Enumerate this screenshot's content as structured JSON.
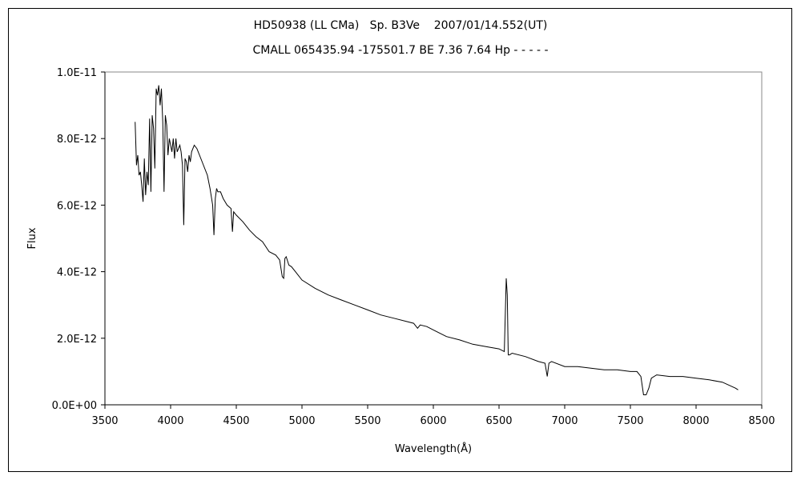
{
  "chart_data": {
    "type": "line",
    "title": "HD50938 (LL CMa)   Sp. B3Ve    2007/01/14.552(UT)",
    "subtitle": "CMALL 065435.94 -175501.7 BE 7.36 7.64 Hp - - - - -",
    "xlabel": "Wavelength(Å)",
    "ylabel": "Flux",
    "xlim": [
      3500,
      8500
    ],
    "ylim": [
      0,
      1e-11
    ],
    "xticks": [
      3500,
      4000,
      4500,
      5000,
      5500,
      6000,
      6500,
      7000,
      7500,
      8000,
      8500
    ],
    "xtick_labels": [
      "3500",
      "4000",
      "4500",
      "5000",
      "5500",
      "6000",
      "6500",
      "7000",
      "7500",
      "8000",
      "8500"
    ],
    "yticks": [
      0,
      2e-12,
      4e-12,
      6e-12,
      8e-12,
      1e-11
    ],
    "ytick_labels": [
      "0.0E+00",
      "2.0E-12",
      "4.0E-12",
      "6.0E-12",
      "8.0E-12",
      "1.0E-11"
    ],
    "grid": false,
    "legend": "none",
    "series": [
      {
        "x": [
          3730,
          3740,
          3750,
          3760,
          3770,
          3780,
          3790,
          3800,
          3810,
          3820,
          3830,
          3840,
          3850,
          3860,
          3870,
          3880,
          3890,
          3900,
          3910,
          3920,
          3930,
          3940,
          3950,
          3960,
          3970,
          3980,
          3990,
          4000,
          4010,
          4020,
          4030,
          4040,
          4050,
          4060,
          4070,
          4080,
          4090,
          4100,
          4110,
          4120,
          4130,
          4140,
          4150,
          4160,
          4180,
          4200,
          4220,
          4250,
          4280,
          4300,
          4320,
          4330,
          4340,
          4350,
          4360,
          4380,
          4400,
          4430,
          4460,
          4471,
          4480,
          4500,
          4550,
          4600,
          4650,
          4700,
          4750,
          4800,
          4830,
          4850,
          4861,
          4870,
          4880,
          4900,
          4920,
          4950,
          5000,
          5100,
          5200,
          5300,
          5400,
          5500,
          5600,
          5700,
          5800,
          5850,
          5880,
          5900,
          5950,
          6000,
          6050,
          6100,
          6200,
          6300,
          6400,
          6500,
          6540,
          6555,
          6563,
          6570,
          6580,
          6600,
          6700,
          6800,
          6850,
          6867,
          6880,
          6900,
          7000,
          7100,
          7200,
          7300,
          7400,
          7500,
          7550,
          7580,
          7600,
          7620,
          7640,
          7660,
          7700,
          7800,
          7900,
          8000,
          8100,
          8200,
          8300,
          8320
        ],
        "y": [
          8.5e-12,
          7.2e-12,
          7.5e-12,
          6.9e-12,
          7e-12,
          6.6e-12,
          6.1e-12,
          7.4e-12,
          6.3e-12,
          7e-12,
          6.6e-12,
          8.6e-12,
          6.4e-12,
          8.7e-12,
          8.3e-12,
          7.1e-12,
          9.5e-12,
          9.3e-12,
          9.6e-12,
          9e-12,
          9.5e-12,
          8.5e-12,
          6.4e-12,
          8.7e-12,
          8.4e-12,
          7.5e-12,
          8e-12,
          7.8e-12,
          7.6e-12,
          8e-12,
          7.4e-12,
          8e-12,
          7.6e-12,
          7.7e-12,
          7.8e-12,
          7.6e-12,
          7.2e-12,
          5.4e-12,
          7.4e-12,
          7.3e-12,
          7e-12,
          7.5e-12,
          7.3e-12,
          7.6e-12,
          7.8e-12,
          7.7e-12,
          7.5e-12,
          7.2e-12,
          6.9e-12,
          6.5e-12,
          6e-12,
          5.1e-12,
          6.2e-12,
          6.5e-12,
          6.4e-12,
          6.4e-12,
          6.2e-12,
          6e-12,
          5.9e-12,
          5.2e-12,
          5.8e-12,
          5.7e-12,
          5.5e-12,
          5.25e-12,
          5.05e-12,
          4.9e-12,
          4.6e-12,
          4.5e-12,
          4.35e-12,
          3.85e-12,
          3.8e-12,
          4.4e-12,
          4.45e-12,
          4.2e-12,
          4.15e-12,
          4e-12,
          3.75e-12,
          3.5e-12,
          3.3e-12,
          3.15e-12,
          3e-12,
          2.85e-12,
          2.7e-12,
          2.6e-12,
          2.5e-12,
          2.45e-12,
          2.3e-12,
          2.4e-12,
          2.35e-12,
          2.25e-12,
          2.15e-12,
          2.05e-12,
          1.95e-12,
          1.82e-12,
          1.75e-12,
          1.68e-12,
          1.6e-12,
          3.8e-12,
          3.3e-12,
          1.5e-12,
          1.5e-12,
          1.55e-12,
          1.45e-12,
          1.3e-12,
          1.25e-12,
          8.5e-13,
          1.25e-12,
          1.3e-12,
          1.15e-12,
          1.15e-12,
          1.1e-12,
          1.05e-12,
          1.05e-12,
          1e-12,
          1e-12,
          8.5e-13,
          3e-13,
          3e-13,
          5e-13,
          8e-13,
          9e-13,
          8.5e-13,
          8.5e-13,
          8e-13,
          7.5e-13,
          6.8e-13,
          5e-13,
          4.5e-13
        ]
      }
    ]
  }
}
